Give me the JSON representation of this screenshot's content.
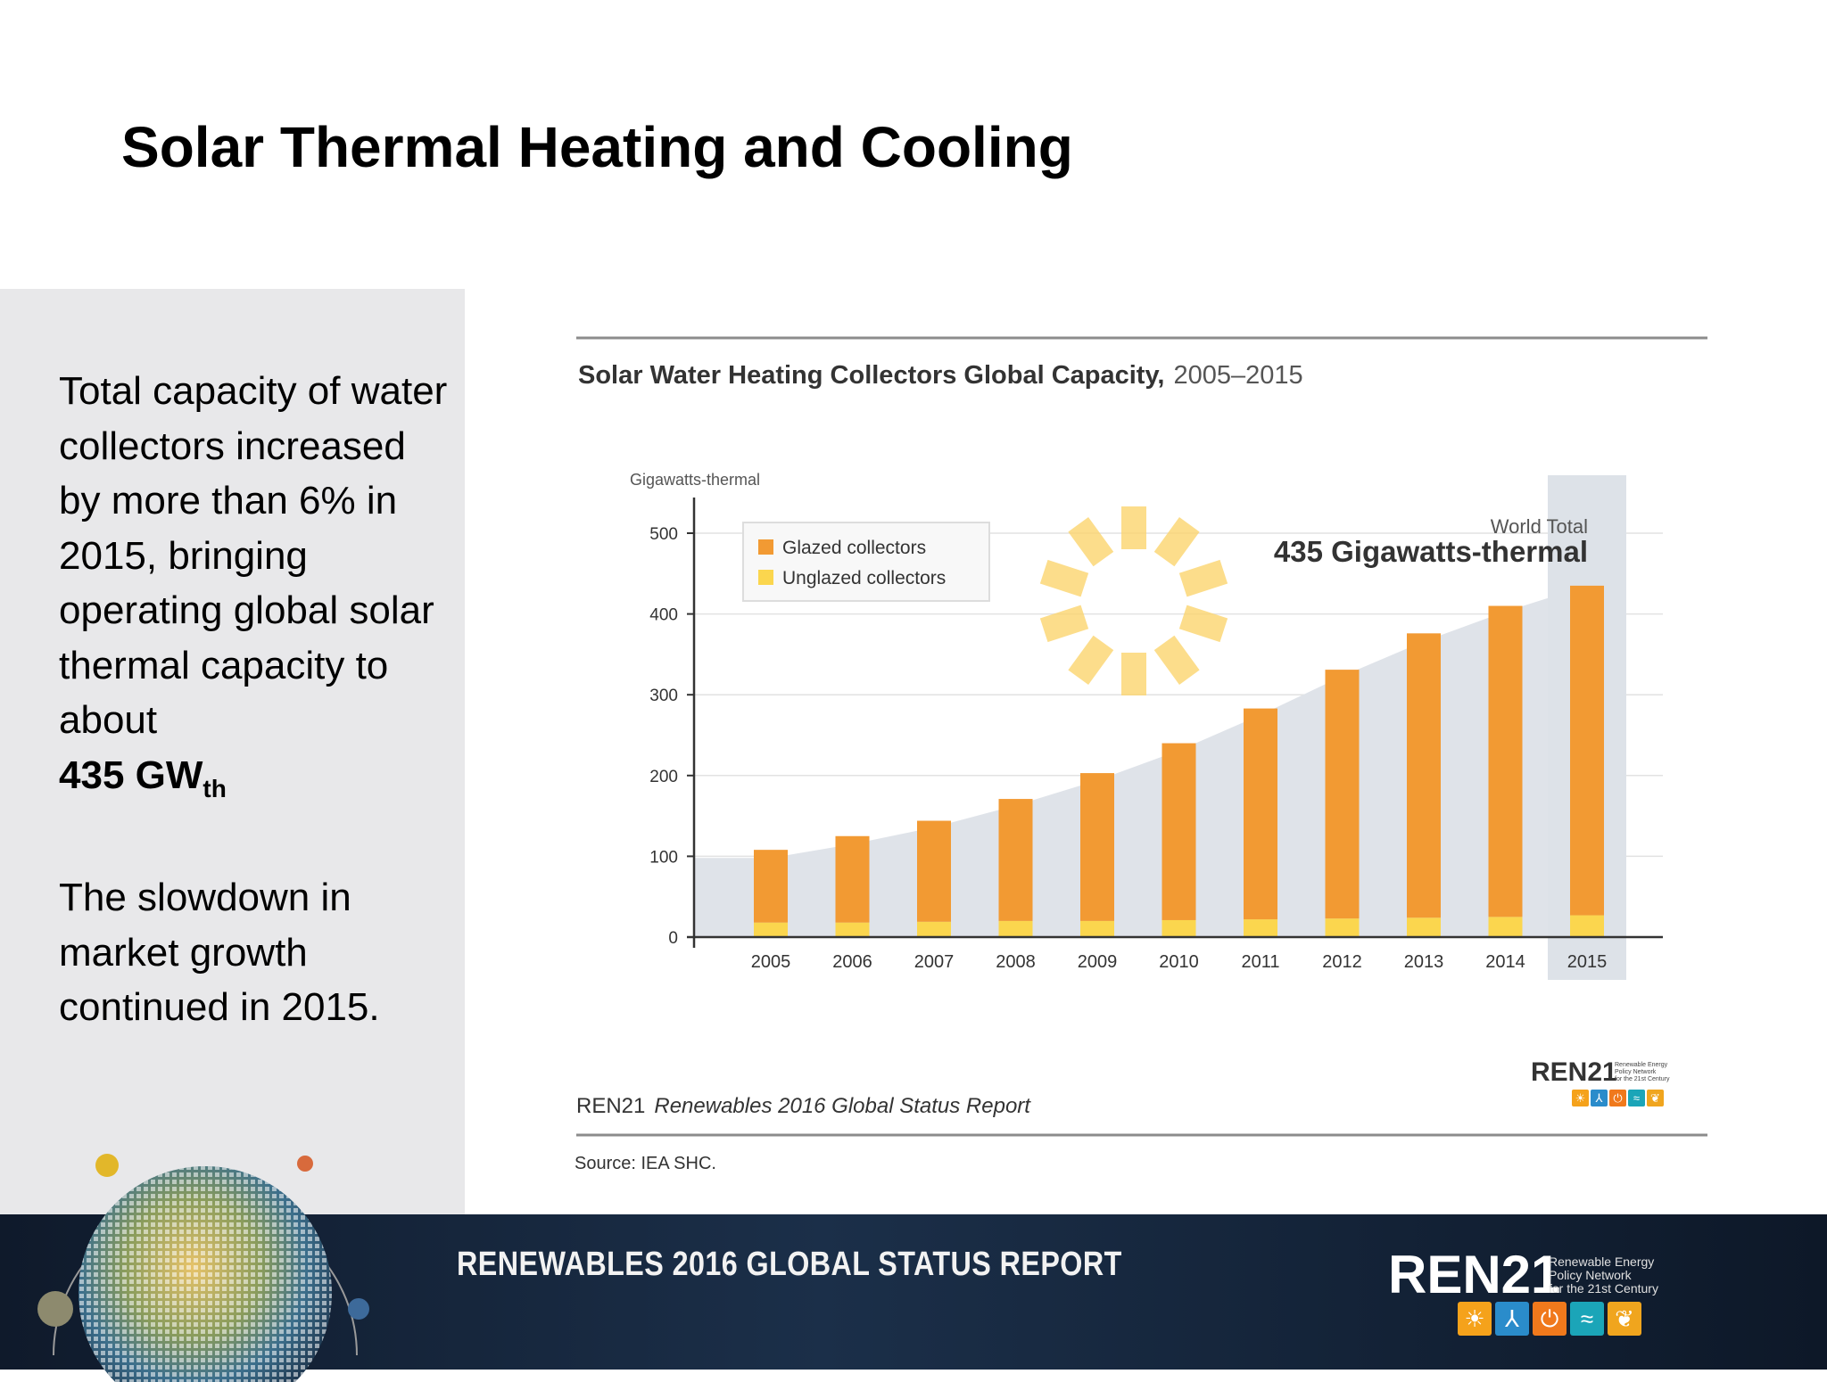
{
  "slide": {
    "title": "Solar Thermal Heating and Cooling",
    "side_text": {
      "para1": "Total capacity of water collectors increased by more than 6% in 2015, bringing operating global solar thermal capacity to about",
      "value_main": "435 GW",
      "value_sub": "th",
      "para2": "The slowdown in market growth continued in 2015."
    }
  },
  "chart_data": {
    "type": "bar",
    "stacked": true,
    "title": "Solar Water Heating Collectors Global Capacity,",
    "title_years": "2005–2015",
    "ylabel": "Gigawatts-thermal",
    "ylim": [
      0,
      500
    ],
    "yticks": [
      "0",
      "100",
      "200",
      "300",
      "400",
      "500"
    ],
    "categories": [
      "2005",
      "2006",
      "2007",
      "2008",
      "2009",
      "2010",
      "2011",
      "2012",
      "2013",
      "2014",
      "2015"
    ],
    "series": [
      {
        "name": "Glazed collectors",
        "color": "#f29a33",
        "values": [
          90,
          107,
          125,
          151,
          183,
          219,
          261,
          308,
          352,
          385,
          408
        ]
      },
      {
        "name": "Unglazed collectors",
        "color": "#fbd64e",
        "values": [
          18,
          18,
          19,
          20,
          20,
          21,
          22,
          23,
          24,
          25,
          27
        ]
      }
    ],
    "background_trend": [
      98,
      115,
      136,
      163,
      194,
      231,
      275,
      323,
      366,
      403,
      435
    ],
    "annotation": {
      "label": "World Total",
      "value": "435 Gigawatts-thermal"
    },
    "highlight_category": "2015",
    "legend_position": "top-left",
    "grid": true,
    "footer_report_org": "REN21",
    "footer_report_title": "Renewables 2016 Global Status Report",
    "source": "Source: IEA SHC."
  },
  "logo": {
    "word": "REN21",
    "tagline": [
      "Renewable Energy",
      "Policy Network",
      "for the 21st Century"
    ],
    "icon_colors": [
      "#f5a21b",
      "#2a8ccb",
      "#f0791c",
      "#1ba5b8",
      "#f0a51e"
    ],
    "icon_glyphs": [
      "☀",
      "⅄",
      "⏻",
      "≈",
      "❦"
    ]
  },
  "banner": {
    "title": "RENEWABLES 2016 GLOBAL STATUS REPORT"
  }
}
